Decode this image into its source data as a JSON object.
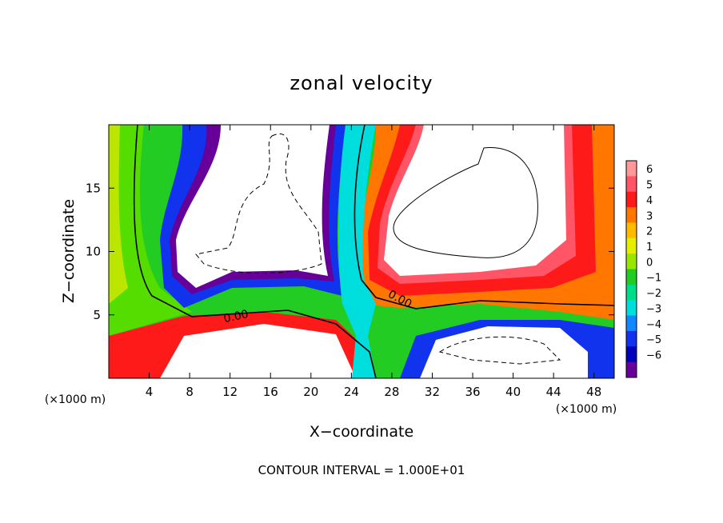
{
  "chart_data": {
    "type": "heatmap",
    "title": "zonal velocity",
    "xlabel": "X−coordinate",
    "ylabel": "Z−coordinate",
    "x_unit_left": "(×1000 m)",
    "x_unit_right": "(×1000 m)",
    "xlim": [
      0,
      50
    ],
    "ylim": [
      0,
      20
    ],
    "xticks": [
      4,
      8,
      12,
      16,
      20,
      24,
      28,
      32,
      36,
      40,
      44,
      48
    ],
    "yticks": [
      5,
      10,
      15
    ],
    "colorbar": {
      "ticks": [
        "6",
        "5",
        "4",
        "3",
        "2",
        "1",
        "0",
        "−1",
        "−2",
        "−3",
        "−4",
        "−5",
        "−6"
      ],
      "colors": [
        "#ff9999",
        "#ff5566",
        "#ff1a1a",
        "#ff7700",
        "#ffbb00",
        "#e6ee00",
        "#99e600",
        "#22cc22",
        "#00dd88",
        "#00dddd",
        "#1188ff",
        "#1133ee",
        "#0000bb",
        "#660099"
      ]
    },
    "contour_labels": [
      "0.00",
      "0.00"
    ],
    "footer": "CONTOUR INTERVAL = 1.000E+01"
  }
}
